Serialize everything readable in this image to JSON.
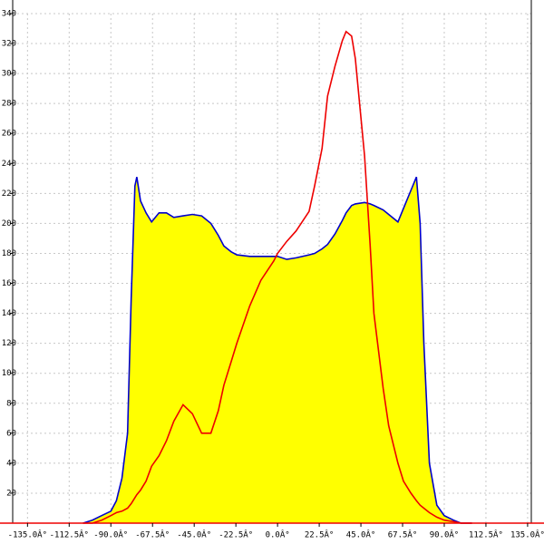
{
  "chart_data": {
    "type": "area",
    "x": [
      -105,
      -100,
      -95,
      -90,
      -87,
      -84,
      -81,
      -79,
      -77,
      -76,
      -74,
      -71,
      -68,
      -64,
      -60,
      -56,
      -51,
      -46,
      -41,
      -36,
      -32,
      -29,
      -25,
      -22,
      -15,
      -9,
      -2,
      0,
      5,
      10,
      17,
      20,
      24,
      27,
      31,
      35,
      37,
      40,
      42,
      47,
      50,
      52,
      57,
      60,
      65,
      68,
      72,
      75,
      77,
      79,
      82,
      86,
      90,
      95,
      99,
      105
    ],
    "series": [
      {
        "color": "#0000cc",
        "fill": "#ffff00",
        "values": [
          0,
          2,
          5,
          8,
          15,
          30,
          60,
          150,
          225,
          231,
          215,
          207,
          201,
          207,
          207,
          204,
          205,
          206,
          205,
          200,
          192,
          185,
          181,
          179,
          178,
          178,
          178,
          178,
          176,
          177,
          179,
          180,
          183,
          186,
          193,
          202,
          207,
          212,
          213,
          214,
          213,
          212,
          209,
          206,
          201,
          210,
          222,
          231,
          200,
          120,
          40,
          12,
          5,
          2,
          0,
          0
        ]
      },
      {
        "color": "#ee0000",
        "values": [
          0,
          0,
          2,
          5,
          7,
          8,
          10,
          13,
          17,
          19,
          22,
          28,
          38,
          45,
          55,
          68,
          79,
          73,
          60,
          60,
          75,
          92,
          108,
          120,
          145,
          162,
          175,
          180,
          188,
          195,
          208,
          225,
          250,
          285,
          305,
          322,
          328,
          325,
          310,
          245,
          185,
          140,
          90,
          65,
          40,
          28,
          20,
          15,
          12,
          10,
          7,
          4,
          2,
          1,
          0,
          0
        ]
      }
    ],
    "xlim": [
      -143,
      137
    ],
    "ylim": [
      0,
      340
    ],
    "xticks": [
      {
        "value": -135,
        "label": "-135.0Â°"
      },
      {
        "value": -112.5,
        "label": "-112.5Â°"
      },
      {
        "value": -90,
        "label": "-90.0Â°"
      },
      {
        "value": -67.5,
        "label": "-67.5Â°"
      },
      {
        "value": -45,
        "label": "-45.0Â°"
      },
      {
        "value": -22.5,
        "label": "-22.5Â°"
      },
      {
        "value": 0,
        "label": "0.0Â°"
      },
      {
        "value": 22.5,
        "label": "22.5Â°"
      },
      {
        "value": 45,
        "label": "45.0Â°"
      },
      {
        "value": 67.5,
        "label": "67.5Â°"
      },
      {
        "value": 90,
        "label": "90.0Â°"
      },
      {
        "value": 112.5,
        "label": "112.5Â°"
      },
      {
        "value": 135,
        "label": "135.0Â°"
      }
    ],
    "yticks": [
      20,
      40,
      60,
      80,
      100,
      120,
      140,
      160,
      180,
      200,
      220,
      240,
      260,
      280,
      300,
      320,
      340
    ],
    "grid": true
  }
}
